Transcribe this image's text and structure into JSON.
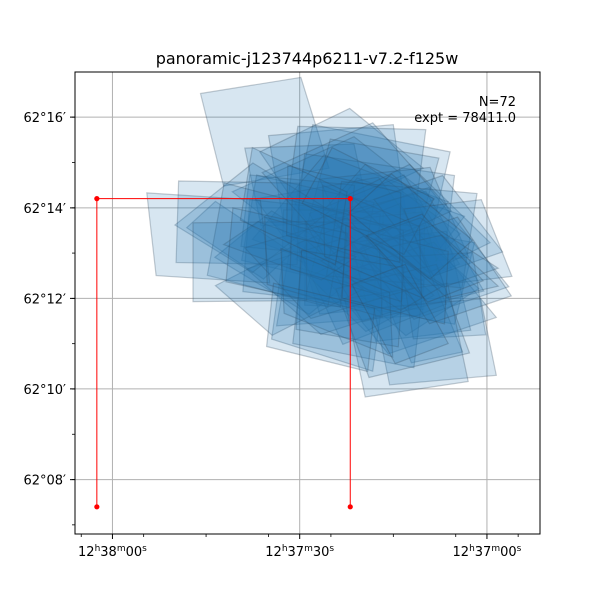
{
  "chart_data": {
    "type": "scatter",
    "title": "panoramic-j123744p6211-v7.2-f125w",
    "xlabel": "",
    "ylabel": "",
    "grid": true,
    "x_axis_units": "RA (seconds of time offset from 12h37m00s, increasing leftwards)",
    "xlim": [
      66.0,
      -8.5
    ],
    "ylim": [
      62.1133,
      62.2833
    ],
    "x_ticks": [
      {
        "value": 60,
        "label": "12h38m00s"
      },
      {
        "value": 30,
        "label": "12h37m30s"
      },
      {
        "value": 0,
        "label": "12h37m00s"
      }
    ],
    "y_ticks": [
      {
        "value": 62.1333,
        "label": "62°08′"
      },
      {
        "value": 62.1667,
        "label": "62°10′"
      },
      {
        "value": 62.2,
        "label": "62°12′"
      },
      {
        "value": 62.2333,
        "label": "62°14′"
      },
      {
        "value": 62.2667,
        "label": "62°16′"
      }
    ],
    "annotations": {
      "n_label": "N=72",
      "expt_label": "expt = 78411.0"
    },
    "fill_color": "#1f77b4",
    "outline_color": "#33475b",
    "box_color": "#ff0000",
    "box": {
      "points": [
        {
          "x": 62.5,
          "y": 62.2367
        },
        {
          "x": 21.9,
          "y": 62.2367
        },
        {
          "x": 21.9,
          "y": 62.1233
        },
        {
          "x": 62.5,
          "y": 62.1233
        }
      ],
      "edges": [
        {
          "x1": 62.5,
          "y1": 62.2367,
          "x2": 21.9,
          "y2": 62.2367
        },
        {
          "x1": 62.5,
          "y1": 62.2367,
          "x2": 62.5,
          "y2": 62.1233
        },
        {
          "x1": 21.9,
          "y1": 62.2367,
          "x2": 21.9,
          "y2": 62.1233
        }
      ]
    },
    "footprints": [
      [
        [
          45.9,
          62.2754
        ],
        [
          29.8,
          62.2813
        ],
        [
          25.3,
          62.2479
        ],
        [
          42.2,
          62.2413
        ]
      ],
      [
        [
          35.0,
          62.2599
        ],
        [
          15.0,
          62.2639
        ],
        [
          13.0,
          62.2319
        ],
        [
          32.6,
          62.2279
        ]
      ],
      [
        [
          27.9,
          62.2639
        ],
        [
          5.9,
          62.2539
        ],
        [
          9.5,
          62.2179
        ],
        [
          31.4,
          62.2279
        ]
      ],
      [
        [
          12.6,
          62.2279
        ],
        [
          10.2,
          62.1939
        ],
        [
          33.7,
          62.1899
        ],
        [
          31.0,
          62.2259
        ]
      ],
      [
        [
          22.0,
          62.2699
        ],
        [
          10.2,
          62.2479
        ],
        [
          28.6,
          62.2279
        ],
        [
          36.4,
          62.2539
        ]
      ],
      [
        [
          38.8,
          62.2553
        ],
        [
          36.2,
          62.2267
        ],
        [
          18.6,
          62.2281
        ],
        [
          21.3,
          62.2568
        ]
      ],
      [
        [
          30.3,
          62.2633
        ],
        [
          9.8,
          62.2621
        ],
        [
          11.5,
          62.2317
        ],
        [
          32.1,
          62.2329
        ]
      ],
      [
        [
          21.3,
          62.2595
        ],
        [
          8.5,
          62.2364
        ],
        [
          27.9,
          62.2161
        ],
        [
          40.8,
          62.2392
        ]
      ],
      [
        [
          29.2,
          62.2532
        ],
        [
          5.2,
          62.2452
        ],
        [
          6.7,
          62.2172
        ],
        [
          30.6,
          62.2252
        ]
      ],
      [
        [
          25.1,
          62.2586
        ],
        [
          7.7,
          62.2516
        ],
        [
          12.0,
          62.2159
        ],
        [
          29.3,
          62.2229
        ]
      ],
      [
        [
          20.8,
          62.2443
        ],
        [
          3.6,
          62.2302
        ],
        [
          13.5,
          62.2003
        ],
        [
          30.7,
          62.2143
        ]
      ],
      [
        [
          26.1,
          62.2528
        ],
        [
          6.2,
          62.2355
        ],
        [
          17.6,
          62.2044
        ],
        [
          37.6,
          62.2217
        ]
      ],
      [
        [
          26.8,
          62.2439
        ],
        [
          20.6,
          62.2108
        ],
        [
          2.9,
          62.2151
        ],
        [
          9.1,
          62.2482
        ]
      ],
      [
        [
          37.1,
          62.2366
        ],
        [
          26.4,
          62.203
        ],
        [
          6.7,
          62.211
        ],
        [
          17.4,
          62.2446
        ]
      ],
      [
        [
          24.2,
          62.2314
        ],
        [
          17.3,
          62.2008
        ],
        [
          5.6,
          62.2106
        ],
        [
          12.5,
          62.2412
        ]
      ],
      [
        [
          32.6,
          62.2326
        ],
        [
          33.0,
          62.2013
        ],
        [
          17.0,
          62.2006
        ],
        [
          16.6,
          62.2319
        ]
      ],
      [
        [
          28.5,
          62.2312
        ],
        [
          19.6,
          62.1984
        ],
        [
          4.4,
          62.2126
        ],
        [
          13.3,
          62.2454
        ]
      ],
      [
        [
          36.9,
          62.2454
        ],
        [
          18.1,
          62.2353
        ],
        [
          20.6,
          62.2038
        ],
        [
          39.3,
          62.214
        ]
      ],
      [
        [
          38.0,
          62.2364
        ],
        [
          17.1,
          62.231
        ],
        [
          18.2,
          62.1971
        ],
        [
          39.1,
          62.2025
        ]
      ],
      [
        [
          19.5,
          62.2493
        ],
        [
          4.3,
          62.2238
        ],
        [
          11.5,
          62.2055
        ],
        [
          26.7,
          62.231
        ]
      ],
      [
        [
          31.1,
          62.2269
        ],
        [
          26.8,
          62.1942
        ],
        [
          6.1,
          62.1991
        ],
        [
          10.4,
          62.2318
        ]
      ],
      [
        [
          34.5,
          62.2322
        ],
        [
          19.4,
          62.2112
        ],
        [
          28.5,
          62.1941
        ],
        [
          43.6,
          62.2151
        ]
      ],
      [
        [
          43.5,
          62.2357
        ],
        [
          31.2,
          62.2168
        ],
        [
          35.8,
          62.2071
        ],
        [
          48.1,
          62.226
        ]
      ],
      [
        [
          38.0,
          62.2454
        ],
        [
          21.2,
          62.2416
        ],
        [
          22.6,
          62.2153
        ],
        [
          39.4,
          62.2191
        ]
      ],
      [
        [
          29.1,
          62.2283
        ],
        [
          10.0,
          62.2267
        ],
        [
          10.1,
          62.1959
        ],
        [
          29.2,
          62.1975
        ]
      ],
      [
        [
          25.9,
          62.2305
        ],
        [
          2.0,
          62.2205
        ],
        [
          5.2,
          62.1905
        ],
        [
          29.1,
          62.2005
        ]
      ],
      [
        [
          21.7,
          62.2206
        ],
        [
          17.8,
          62.1842
        ],
        [
          2.6,
          62.1883
        ],
        [
          6.5,
          62.2247
        ]
      ],
      [
        [
          25.1,
          62.2113
        ],
        [
          13.0,
          62.1863
        ],
        [
          1.3,
          62.2036
        ],
        [
          13.4,
          62.2286
        ]
      ],
      [
        [
          25.8,
          62.2073
        ],
        [
          15.8,
          62.1796
        ],
        [
          -1.5,
          62.193
        ],
        [
          8.5,
          62.2207
        ]
      ],
      [
        [
          19.9,
          62.2196
        ],
        [
          12.1,
          62.1763
        ],
        [
          3.9,
          62.1803
        ],
        [
          11.7,
          62.2236
        ]
      ],
      [
        [
          30.5,
          62.2201
        ],
        [
          23.1,
          62.1831
        ],
        [
          6.5,
          62.1979
        ],
        [
          13.9,
          62.2349
        ]
      ],
      [
        [
          28.5,
          62.2079
        ],
        [
          19.4,
          62.1878
        ],
        [
          8.5,
          62.2011
        ],
        [
          17.6,
          62.2212
        ]
      ],
      [
        [
          32.8,
          62.2133
        ],
        [
          16.6,
          62.2015
        ],
        [
          18.3,
          62.1732
        ],
        [
          34.5,
          62.185
        ]
      ],
      [
        [
          29.5,
          62.2155
        ],
        [
          10.1,
          62.2066
        ],
        [
          11.7,
          62.1745
        ],
        [
          31.1,
          62.1834
        ]
      ],
      [
        [
          29.2,
          62.2281
        ],
        [
          19.9,
          62.1914
        ],
        [
          0.5,
          62.2027
        ],
        [
          9.8,
          62.2394
        ]
      ],
      [
        [
          24.5,
          62.2288
        ],
        [
          11.7,
          62.1923
        ],
        [
          -3.5,
          62.2043
        ],
        [
          9.3,
          62.2408
        ]
      ],
      [
        [
          22.2,
          62.2382
        ],
        [
          9.3,
          62.2094
        ],
        [
          -0.5,
          62.2205
        ],
        [
          12.4,
          62.2493
        ]
      ],
      [
        [
          38.5,
          62.2108
        ],
        [
          23.0,
          62.2221
        ],
        [
          11.1,
          62.1981
        ],
        [
          26.6,
          62.1868
        ]
      ],
      [
        [
          43.5,
          62.2047
        ],
        [
          29.0,
          62.2216
        ],
        [
          19.9,
          62.2033
        ],
        [
          34.4,
          62.1864
        ]
      ],
      [
        [
          50.0,
          62.227
        ],
        [
          37.6,
          62.2095
        ],
        [
          25.1,
          62.2323
        ],
        [
          37.5,
          62.2498
        ]
      ],
      [
        [
          49.4,
          62.2432
        ],
        [
          30.0,
          62.2424
        ],
        [
          30.4,
          62.2124
        ],
        [
          49.8,
          62.2132
        ]
      ],
      [
        [
          42.1,
          62.2425
        ],
        [
          22.8,
          62.2309
        ],
        [
          25.5,
          62.1969
        ],
        [
          44.8,
          62.2085
        ]
      ],
      [
        [
          54.5,
          62.2388
        ],
        [
          36.3,
          62.2361
        ],
        [
          34.8,
          62.2057
        ],
        [
          53.0,
          62.2084
        ]
      ],
      [
        [
          36.0,
          62.2463
        ],
        [
          23.4,
          62.2138
        ],
        [
          5.7,
          62.2321
        ],
        [
          18.3,
          62.2646
        ]
      ],
      [
        [
          23.3,
          62.243
        ],
        [
          1.6,
          62.2386
        ],
        [
          4.0,
          62.2039
        ],
        [
          25.7,
          62.2083
        ]
      ],
      [
        [
          18.1,
          62.2364
        ],
        [
          8.5,
          62.2083
        ],
        [
          -2.5,
          62.2171
        ],
        [
          7.1,
          62.2452
        ]
      ],
      [
        [
          13.3,
          62.2329
        ],
        [
          8.4,
          62.2047
        ],
        [
          -4.0,
          62.2081
        ],
        [
          0.9,
          62.2363
        ]
      ],
      [
        [
          13.9,
          62.2153
        ],
        [
          11.8,
          62.1851
        ],
        [
          0.2,
          62.1866
        ],
        [
          2.3,
          62.2168
        ]
      ],
      [
        [
          18.1,
          62.1963
        ],
        [
          15.6,
          62.1682
        ],
        [
          -1.5,
          62.1717
        ],
        [
          1.0,
          62.1998
        ]
      ],
      [
        [
          22.8,
          62.1999
        ],
        [
          19.5,
          62.1637
        ],
        [
          3.0,
          62.1694
        ],
        [
          6.3,
          62.2056
        ]
      ],
      [
        [
          24.2,
          62.2035
        ],
        [
          18.9,
          62.1709
        ],
        [
          2.8,
          62.1799
        ],
        [
          8.1,
          62.2125
        ]
      ],
      [
        [
          17.8,
          62.2197
        ],
        [
          9.2,
          62.1907
        ],
        [
          -3.9,
          62.2009
        ],
        [
          4.7,
          62.2299
        ]
      ],
      [
        [
          38.8,
          62.2186
        ],
        [
          28.2,
          62.1926
        ],
        [
          11.8,
          62.2036
        ],
        [
          22.4,
          62.2296
        ]
      ],
      [
        [
          26.6,
          62.2138
        ],
        [
          13.8,
          62.1956
        ],
        [
          6.9,
          62.2048
        ],
        [
          19.7,
          62.223
        ]
      ],
      [
        [
          42.2,
          62.2198
        ],
        [
          26.5,
          62.2068
        ],
        [
          21.0,
          62.2153
        ],
        [
          36.7,
          62.2283
        ]
      ],
      [
        [
          47.1,
          62.2278
        ],
        [
          28.9,
          62.2282
        ],
        [
          28.9,
          62.1992
        ],
        [
          47.1,
          62.1988
        ]
      ],
      [
        [
          40.7,
          62.2333
        ],
        [
          22.4,
          62.224
        ],
        [
          23.5,
          62.1968
        ],
        [
          41.8,
          62.2061
        ]
      ],
      [
        [
          35.6,
          62.2299
        ],
        [
          17.2,
          62.2179
        ],
        [
          16.8,
          62.1931
        ],
        [
          35.2,
          62.2051
        ]
      ],
      [
        [
          31.2,
          62.2369
        ],
        [
          13.4,
          62.2249
        ],
        [
          13.7,
          62.1989
        ],
        [
          31.5,
          62.2109
        ]
      ],
      [
        [
          19.5,
          62.2226
        ],
        [
          7.0,
          62.2041
        ],
        [
          -1.8,
          62.2111
        ],
        [
          10.7,
          62.2296
        ]
      ],
      [
        [
          15.4,
          62.219
        ],
        [
          6.4,
          62.2002
        ],
        [
          -1.8,
          62.2045
        ],
        [
          7.2,
          62.2233
        ]
      ],
      [
        [
          29.7,
          62.2177
        ],
        [
          13.3,
          62.2113
        ],
        [
          14.2,
          62.1822
        ],
        [
          30.6,
          62.1886
        ]
      ],
      [
        [
          33.0,
          62.2183
        ],
        [
          15.6,
          62.2022
        ],
        [
          15.1,
          62.1784
        ],
        [
          32.5,
          62.1945
        ]
      ],
      [
        [
          34.2,
          62.2056
        ],
        [
          18.0,
          62.1964
        ],
        [
          19.1,
          62.1731
        ],
        [
          35.3,
          62.1823
        ]
      ],
      [
        [
          22.6,
          62.2268
        ],
        [
          6.2,
          62.2173
        ],
        [
          6.8,
          62.1906
        ],
        [
          23.2,
          62.2001
        ]
      ],
      [
        [
          26.3,
          62.2416
        ],
        [
          10.8,
          62.2264
        ],
        [
          10.5,
          62.2003
        ],
        [
          26.0,
          62.2155
        ]
      ],
      [
        [
          31.9,
          62.2488
        ],
        [
          13.8,
          62.239
        ],
        [
          14.0,
          62.2133
        ],
        [
          32.1,
          62.2231
        ]
      ],
      [
        [
          37.6,
          62.2555
        ],
        [
          22.4,
          62.2391
        ],
        [
          24.3,
          62.2124
        ],
        [
          39.5,
          62.2288
        ]
      ],
      [
        [
          24.8,
          62.2555
        ],
        [
          8.5,
          62.2367
        ],
        [
          13.3,
          62.2162
        ],
        [
          29.6,
          62.235
        ]
      ],
      [
        [
          15.3,
          62.2458
        ],
        [
          2.3,
          62.2214
        ],
        [
          9.1,
          62.2071
        ],
        [
          22.1,
          62.2315
        ]
      ],
      [
        [
          10.4,
          62.231
        ],
        [
          0.6,
          62.2065
        ],
        [
          9.5,
          62.1986
        ],
        [
          19.3,
          62.2231
        ]
      ],
      [
        [
          21.6,
          62.2051
        ],
        [
          14.7,
          62.176
        ],
        [
          6.2,
          62.1834
        ],
        [
          13.1,
          62.2125
        ]
      ]
    ]
  }
}
